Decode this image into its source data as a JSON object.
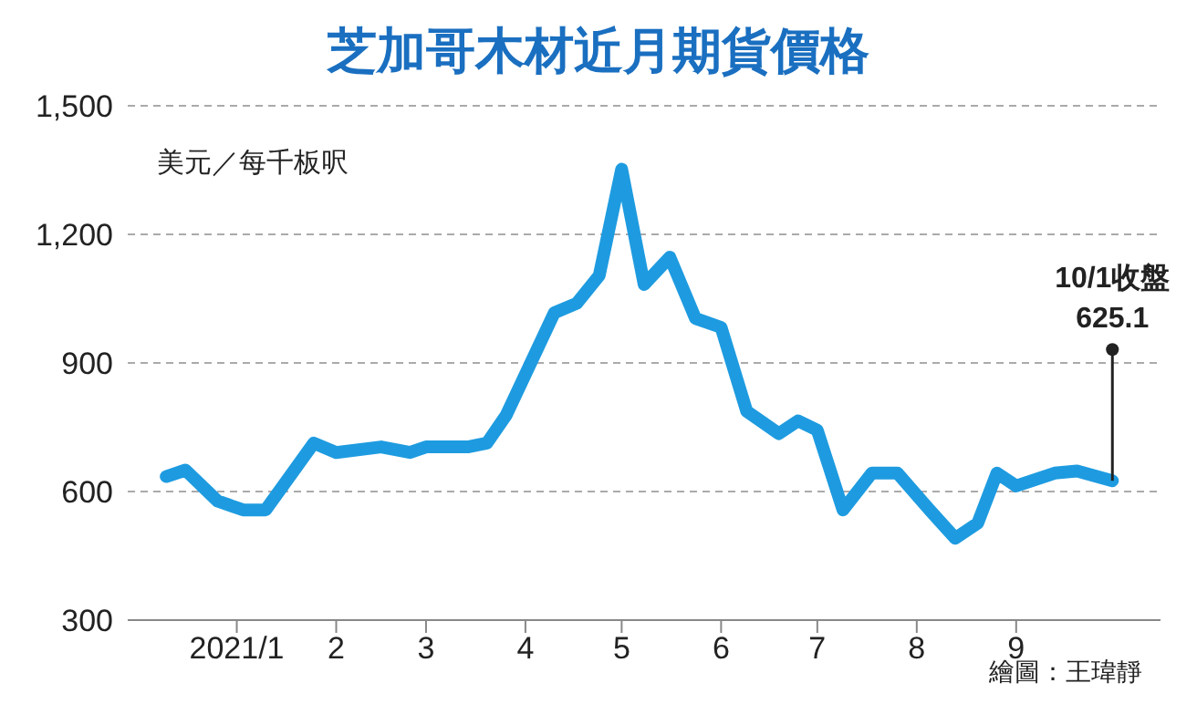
{
  "chart_data": {
    "type": "line",
    "title": "芝加哥木材近月期貨價格",
    "ylabel": "美元／每千板呎",
    "x": [
      "2020-12-10",
      "2020-12-16",
      "2020-12-26",
      "2021-01-03",
      "2021-01-10",
      "2021-01-25",
      "2021-02-01",
      "2021-02-15",
      "2021-02-24",
      "2021-03-01",
      "2021-03-14",
      "2021-03-20",
      "2021-03-26",
      "2021-04-10",
      "2021-04-17",
      "2021-04-24",
      "2021-05-01",
      "2021-05-08",
      "2021-05-16",
      "2021-05-24",
      "2021-06-01",
      "2021-06-09",
      "2021-06-19",
      "2021-06-25",
      "2021-07-01",
      "2021-07-09",
      "2021-07-18",
      "2021-07-26",
      "2021-08-05",
      "2021-08-13",
      "2021-08-20",
      "2021-08-26",
      "2021-09-01",
      "2021-09-13",
      "2021-09-20",
      "2021-10-01"
    ],
    "series": [
      {
        "color": "#1e9be0",
        "values": [
          635,
          650,
          578,
          557,
          557,
          713,
          691,
          704,
          691,
          704,
          704,
          713,
          778,
          1017,
          1039,
          1104,
          1352,
          1083,
          1147,
          1004,
          983,
          787,
          735,
          765,
          743,
          557,
          643,
          643,
          557,
          491,
          526,
          643,
          613,
          643,
          648,
          625.1
        ],
        "value_labels": [
          null,
          null,
          null,
          null,
          null,
          null,
          null,
          null,
          null,
          null,
          null,
          null,
          null,
          null,
          null,
          null,
          null,
          null,
          null,
          null,
          null,
          null,
          null,
          null,
          null,
          null,
          null,
          null,
          null,
          null,
          null,
          null,
          null,
          null,
          null,
          "625.1"
        ]
      }
    ],
    "xlim": [
      "2020-11-28",
      "2021-10-16"
    ],
    "xticks": [
      {
        "value": "2021-01-01",
        "label": "2021/1"
      },
      {
        "value": "2021-02-01",
        "label": "2"
      },
      {
        "value": "2021-03-01",
        "label": "3"
      },
      {
        "value": "2021-04-01",
        "label": "4"
      },
      {
        "value": "2021-05-01",
        "label": "5"
      },
      {
        "value": "2021-06-01",
        "label": "6"
      },
      {
        "value": "2021-07-01",
        "label": "7"
      },
      {
        "value": "2021-08-01",
        "label": "8"
      },
      {
        "value": "2021-09-01",
        "label": "9"
      }
    ],
    "ylim": [
      300,
      1500
    ],
    "yticks": [
      300,
      600,
      900,
      {
        "value": 1200,
        "label": "1,200"
      },
      {
        "value": 1500,
        "label": "1,500"
      }
    ],
    "grid": "y",
    "legend": false,
    "marker": "none",
    "line_style": "solid",
    "annotations": [
      "10/1收盤",
      "繪圖：王瑋靜"
    ]
  }
}
